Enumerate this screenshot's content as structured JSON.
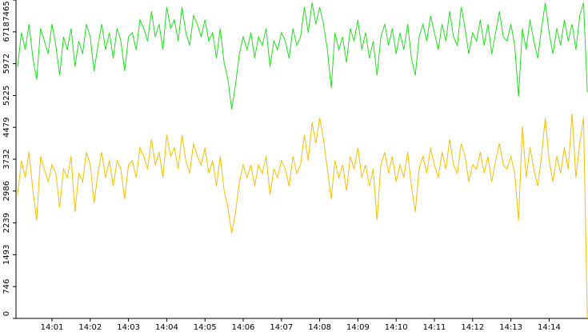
{
  "chart_data": {
    "type": "line",
    "categories": [
      null,
      null,
      null,
      null,
      null,
      null,
      null,
      null,
      null,
      "14:01",
      null,
      null,
      null,
      null,
      null,
      null,
      null,
      null,
      null,
      "14:02",
      null,
      null,
      null,
      null,
      null,
      null,
      null,
      null,
      null,
      "14:03",
      null,
      null,
      null,
      null,
      null,
      null,
      null,
      null,
      null,
      "14:04",
      null,
      null,
      null,
      null,
      null,
      null,
      null,
      null,
      null,
      "14:05",
      null,
      null,
      null,
      null,
      null,
      null,
      null,
      null,
      null,
      "14:06",
      null,
      null,
      null,
      null,
      null,
      null,
      null,
      null,
      null,
      "14:07",
      null,
      null,
      null,
      null,
      null,
      null,
      null,
      null,
      null,
      "14:08",
      null,
      null,
      null,
      null,
      null,
      null,
      null,
      null,
      null,
      "14:09",
      null,
      null,
      null,
      null,
      null,
      null,
      null,
      null,
      null,
      "14:10",
      null,
      null,
      null,
      null,
      null,
      null,
      null,
      null,
      null,
      "14:11",
      null,
      null,
      null,
      null,
      null,
      null,
      null,
      null,
      null,
      "14:12",
      null,
      null,
      null,
      null,
      null,
      null,
      null,
      null,
      null,
      "14:13",
      null,
      null,
      null,
      null,
      null,
      null,
      null,
      null,
      null,
      "14:14",
      null,
      null,
      null,
      null,
      null,
      null,
      null,
      null,
      null,
      null
    ],
    "series": [
      {
        "color": "#22dd22",
        "values": [
          5900,
          6700,
          6300,
          6900,
          6100,
          5600,
          6800,
          6500,
          6200,
          6900,
          6400,
          5700,
          6600,
          6300,
          6800,
          5900,
          6500,
          6200,
          6900,
          6600,
          5800,
          6400,
          6900,
          6300,
          6700,
          6100,
          6800,
          6500,
          5800,
          6600,
          6700,
          6300,
          7000,
          6800,
          6500,
          7200,
          6600,
          6900,
          6300,
          7300,
          6800,
          7000,
          6500,
          7300,
          6700,
          6400,
          7100,
          6900,
          6600,
          7000,
          6500,
          6700,
          6100,
          6800,
          6000,
          5600,
          4900,
          5500,
          6200,
          6600,
          6300,
          6700,
          6100,
          6600,
          6400,
          6800,
          5900,
          6500,
          6300,
          6700,
          6500,
          6100,
          6800,
          6400,
          6600,
          7300,
          6700,
          7400,
          6900,
          7300,
          6900,
          6300,
          5400,
          6700,
          6300,
          6600,
          6000,
          6800,
          6500,
          7000,
          6300,
          6700,
          6100,
          6500,
          5700,
          6600,
          6900,
          6400,
          6800,
          6200,
          6700,
          6300,
          6900,
          6100,
          5700,
          6600,
          6900,
          6500,
          7100,
          6700,
          6300,
          6900,
          6500,
          7200,
          6600,
          6400,
          7300,
          6800,
          6200,
          6700,
          6500,
          7000,
          6400,
          6900,
          6200,
          6700,
          7200,
          6600,
          6500,
          6900,
          6400,
          5200,
          6800,
          6300,
          7000,
          6500,
          6100,
          6800,
          7400,
          6700,
          6200,
          6800,
          6400,
          7000,
          6500,
          6900,
          6300,
          7100,
          7400,
          5300
        ]
      },
      {
        "color": "#f5c000",
        "values": [
          2900,
          3700,
          3300,
          3900,
          3000,
          2300,
          3800,
          3500,
          3200,
          3600,
          3400,
          2600,
          3500,
          3300,
          3800,
          2500,
          3400,
          3200,
          3900,
          3600,
          2700,
          3400,
          3900,
          3300,
          3700,
          3100,
          3700,
          3500,
          2800,
          3600,
          3700,
          3300,
          4000,
          3800,
          3500,
          4200,
          3600,
          3900,
          3300,
          4300,
          3800,
          4000,
          3500,
          4300,
          3700,
          3400,
          4100,
          3800,
          3600,
          4000,
          3400,
          3700,
          3100,
          3800,
          3000,
          2600,
          2000,
          2500,
          3200,
          3600,
          3300,
          3600,
          3100,
          3600,
          3400,
          3800,
          2900,
          3500,
          3300,
          3700,
          3500,
          3100,
          3800,
          3400,
          3600,
          4300,
          3700,
          4600,
          4100,
          4700,
          4200,
          3500,
          2800,
          3700,
          3300,
          3600,
          3000,
          3800,
          3500,
          4000,
          3300,
          3600,
          3100,
          3500,
          2300,
          3600,
          3900,
          3400,
          3800,
          3200,
          3600,
          3300,
          3900,
          3100,
          2500,
          3500,
          3800,
          3400,
          4000,
          3600,
          3300,
          3900,
          3500,
          4200,
          3600,
          3400,
          4100,
          3800,
          3200,
          3600,
          3500,
          3900,
          3400,
          3800,
          3200,
          3700,
          4100,
          3600,
          3500,
          3800,
          3400,
          2300,
          4500,
          3300,
          4000,
          3500,
          3100,
          3800,
          4700,
          3700,
          3200,
          3800,
          3400,
          4000,
          3500,
          4800,
          3300,
          4100,
          4700,
          0
        ]
      }
    ],
    "ylim": [
      0,
      7465
    ],
    "yticks": [
      0,
      746,
      1493,
      2239,
      2986,
      3732,
      4479,
      5225,
      5972,
      6718,
      7465
    ]
  }
}
